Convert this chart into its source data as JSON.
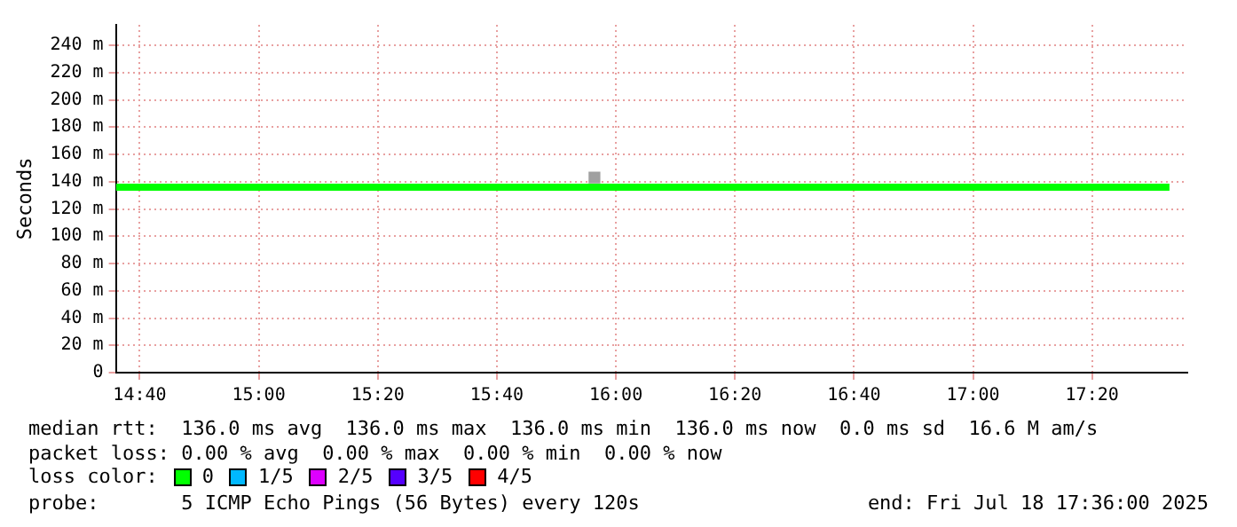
{
  "chart_data": {
    "type": "line",
    "ylabel": "Seconds",
    "xlim": [
      14.6,
      17.6
    ],
    "xticks": [
      {
        "value": 14.6667,
        "label": "14:40"
      },
      {
        "value": 15,
        "label": "15:00"
      },
      {
        "value": 15.3333,
        "label": "15:20"
      },
      {
        "value": 15.6667,
        "label": "15:40"
      },
      {
        "value": 16,
        "label": "16:00"
      },
      {
        "value": 16.3333,
        "label": "16:20"
      },
      {
        "value": 16.6667,
        "label": "16:40"
      },
      {
        "value": 17,
        "label": "17:00"
      },
      {
        "value": 17.3333,
        "label": "17:20"
      }
    ],
    "ylim": [
      0,
      255
    ],
    "yticks": [
      0,
      {
        "value": 20,
        "label": "20 m"
      },
      {
        "value": 40,
        "label": "40 m"
      },
      {
        "value": 60,
        "label": "60 m"
      },
      {
        "value": 80,
        "label": "80 m"
      },
      {
        "value": 100,
        "label": "100 m"
      },
      {
        "value": 120,
        "label": "120 m"
      },
      {
        "value": 140,
        "label": "140 m"
      },
      {
        "value": 160,
        "label": "160 m"
      },
      {
        "value": 180,
        "label": "180 m"
      },
      {
        "value": 200,
        "label": "200 m"
      },
      {
        "value": 220,
        "label": "220 m"
      },
      {
        "value": 240,
        "label": "240 m"
      }
    ],
    "grid": true,
    "legend": "bottom",
    "legend_title": "loss color:",
    "series": [
      {
        "name": "0",
        "color": "#00ff00",
        "marker": "none",
        "x": [
          14.6,
          17.55
        ],
        "values": [
          136,
          136
        ]
      },
      {
        "type": "scatter",
        "color": "#a0a0a0",
        "marker": "square",
        "x": [
          15.94
        ],
        "values": [
          143
        ]
      },
      {
        "name": "1/5",
        "color": "#00b8ff",
        "marker": "none"
      },
      {
        "name": "2/5",
        "color": "#dd00ff",
        "marker": "none"
      },
      {
        "name": "3/5",
        "color": "#5500ff",
        "marker": "none"
      },
      {
        "name": "4/5",
        "color": "#ff0000",
        "marker": "none"
      }
    ],
    "annotations": [
      "median rtt:  136.0 ms avg  136.0 ms max  136.0 ms min  136.0 ms now  0.0 ms sd  16.6 M am/s",
      "packet loss: 0.00 % avg  0.00 % max  0.00 % min  0.00 % now",
      "probe:       5 ICMP Echo Pings (56 Bytes) every 120s",
      "end: Fri Jul 18 17:36:00 2025"
    ]
  }
}
